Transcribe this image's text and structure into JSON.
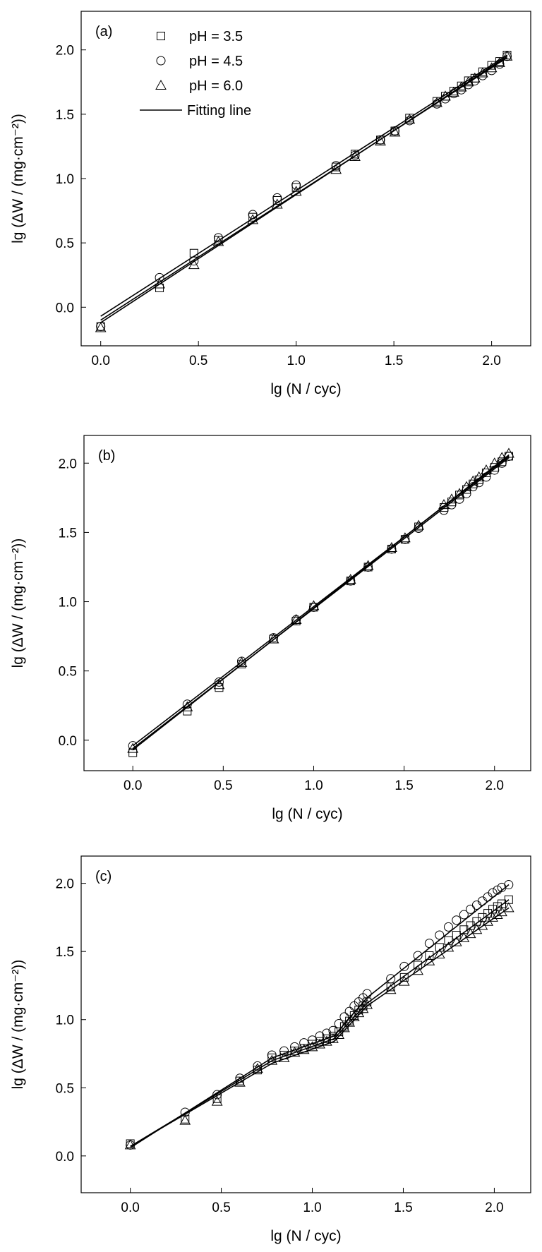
{
  "chart_data": [
    {
      "type": "scatter",
      "panel_label": "(a)",
      "xlabel": "lg (N / cyc)",
      "ylabel": "lg (ΔW / (mg·cm⁻²))",
      "xlim": [
        -0.1,
        2.2
      ],
      "ylim": [
        -0.3,
        2.3
      ],
      "xticks": [
        "0.0",
        "0.5",
        "1.0",
        "1.5",
        "2.0"
      ],
      "yticks": [
        "0.0",
        "0.5",
        "1.0",
        "1.5",
        "2.0"
      ],
      "legend": {
        "placement": "top-left",
        "entries": [
          {
            "label": "pH = 3.5",
            "marker": "square"
          },
          {
            "label": "pH = 4.5",
            "marker": "circle"
          },
          {
            "label": "pH = 6.0",
            "marker": "triangle"
          },
          {
            "label": "Fitting line",
            "marker": "line"
          }
        ]
      },
      "series": [
        {
          "name": "pH = 3.5",
          "marker": "square",
          "x": [
            0,
            0.301,
            0.477,
            0.602,
            0.778,
            0.903,
            1.0,
            1.204,
            1.301,
            1.431,
            1.505,
            1.58,
            1.72,
            1.763,
            1.806,
            1.845,
            1.881,
            1.914,
            1.954,
            2.0,
            2.041,
            2.079
          ],
          "y": [
            -0.15,
            0.15,
            0.42,
            0.52,
            0.7,
            0.83,
            0.93,
            1.09,
            1.19,
            1.3,
            1.37,
            1.47,
            1.6,
            1.64,
            1.68,
            1.72,
            1.76,
            1.78,
            1.83,
            1.88,
            1.91,
            1.96
          ]
        },
        {
          "name": "pH = 4.5",
          "marker": "circle",
          "x": [
            0,
            0.301,
            0.477,
            0.602,
            0.778,
            0.903,
            1.0,
            1.204,
            1.301,
            1.431,
            1.505,
            1.58,
            1.72,
            1.763,
            1.806,
            1.845,
            1.881,
            1.914,
            1.954,
            2.0,
            2.041,
            2.079
          ],
          "y": [
            -0.15,
            0.23,
            0.36,
            0.54,
            0.72,
            0.85,
            0.95,
            1.1,
            1.18,
            1.3,
            1.37,
            1.45,
            1.58,
            1.62,
            1.66,
            1.69,
            1.73,
            1.76,
            1.8,
            1.84,
            1.89,
            1.95
          ]
        },
        {
          "name": "pH = 6.0",
          "marker": "triangle",
          "x": [
            0,
            0.301,
            0.477,
            0.602,
            0.778,
            0.903,
            1.0,
            1.204,
            1.301,
            1.431,
            1.505,
            1.58,
            1.72,
            1.763,
            1.806,
            1.845,
            1.881,
            1.914,
            1.954,
            2.0,
            2.041,
            2.079
          ],
          "y": [
            -0.16,
            0.18,
            0.33,
            0.51,
            0.68,
            0.8,
            0.9,
            1.07,
            1.17,
            1.29,
            1.36,
            1.46,
            1.59,
            1.64,
            1.67,
            1.71,
            1.75,
            1.78,
            1.82,
            1.86,
            1.9,
            1.95
          ]
        }
      ],
      "fit_lines": [
        {
          "x": [
            0,
            2.08
          ],
          "y": [
            -0.07,
            1.96
          ]
        },
        {
          "x": [
            0,
            2.08
          ],
          "y": [
            -0.1,
            1.94
          ]
        },
        {
          "x": [
            0,
            2.08
          ],
          "y": [
            -0.12,
            1.95
          ]
        }
      ]
    },
    {
      "type": "scatter",
      "panel_label": "(b)",
      "xlabel": "lg (N / cyc)",
      "ylabel": "lg (ΔW / (mg·cm⁻²))",
      "xlim": [
        -0.27,
        2.2
      ],
      "ylim": [
        -0.22,
        2.2
      ],
      "xticks": [
        "0.0",
        "0.5",
        "1.0",
        "1.5",
        "2.0"
      ],
      "yticks": [
        "0.0",
        "0.5",
        "1.0",
        "1.5",
        "2.0"
      ],
      "series": [
        {
          "name": "pH = 3.5",
          "marker": "square",
          "x": [
            0,
            0.301,
            0.477,
            0.602,
            0.778,
            0.903,
            1.0,
            1.204,
            1.301,
            1.431,
            1.505,
            1.58,
            1.72,
            1.763,
            1.806,
            1.845,
            1.881,
            1.914,
            1.954,
            2.0,
            2.041,
            2.079
          ],
          "y": [
            -0.09,
            0.21,
            0.38,
            0.55,
            0.73,
            0.86,
            0.96,
            1.15,
            1.25,
            1.38,
            1.45,
            1.54,
            1.68,
            1.72,
            1.77,
            1.81,
            1.85,
            1.88,
            1.93,
            1.97,
            2.01,
            2.05
          ]
        },
        {
          "name": "pH = 4.5",
          "marker": "circle",
          "x": [
            0,
            0.301,
            0.477,
            0.602,
            0.778,
            0.903,
            1.0,
            1.204,
            1.301,
            1.431,
            1.505,
            1.58,
            1.72,
            1.763,
            1.806,
            1.845,
            1.881,
            1.914,
            1.954,
            2.0,
            2.041,
            2.079
          ],
          "y": [
            -0.04,
            0.26,
            0.42,
            0.57,
            0.74,
            0.87,
            0.96,
            1.15,
            1.25,
            1.38,
            1.45,
            1.53,
            1.66,
            1.7,
            1.74,
            1.78,
            1.83,
            1.86,
            1.9,
            1.95,
            2.0,
            2.05
          ]
        },
        {
          "name": "pH = 6.0",
          "marker": "triangle",
          "x": [
            0,
            0.301,
            0.477,
            0.602,
            0.778,
            0.903,
            1.0,
            1.204,
            1.301,
            1.431,
            1.505,
            1.58,
            1.72,
            1.763,
            1.806,
            1.845,
            1.881,
            1.914,
            1.954,
            2.0,
            2.041,
            2.079
          ],
          "y": [
            -0.06,
            0.24,
            0.4,
            0.56,
            0.73,
            0.87,
            0.97,
            1.16,
            1.26,
            1.39,
            1.46,
            1.55,
            1.7,
            1.74,
            1.78,
            1.83,
            1.87,
            1.9,
            1.95,
            2.0,
            2.04,
            2.07
          ]
        }
      ],
      "fit_lines": [
        {
          "x": [
            0,
            2.08
          ],
          "y": [
            -0.04,
            2.05
          ]
        },
        {
          "x": [
            0,
            2.08
          ],
          "y": [
            -0.07,
            2.06
          ]
        },
        {
          "x": [
            0,
            2.08
          ],
          "y": [
            -0.06,
            2.04
          ]
        }
      ]
    },
    {
      "type": "scatter",
      "panel_label": "(c)",
      "xlabel": "lg (N / cyc)",
      "ylabel": "lg (ΔW / (mg·cm⁻²))",
      "xlim": [
        -0.27,
        2.2
      ],
      "ylim": [
        -0.27,
        2.2
      ],
      "xticks": [
        "0.0",
        "0.5",
        "1.0",
        "1.5",
        "2.0"
      ],
      "yticks": [
        "0.0",
        "0.5",
        "1.0",
        "1.5",
        "2.0"
      ],
      "series": [
        {
          "name": "pH = 3.5",
          "marker": "square",
          "x": [
            0,
            0.301,
            0.477,
            0.602,
            0.699,
            0.778,
            0.845,
            0.903,
            0.954,
            1.0,
            1.041,
            1.079,
            1.114,
            1.146,
            1.176,
            1.204,
            1.23,
            1.255,
            1.279,
            1.301,
            1.431,
            1.505,
            1.58,
            1.643,
            1.699,
            1.748,
            1.792,
            1.833,
            1.869,
            1.903,
            1.934,
            1.964,
            1.991,
            2.017,
            2.041,
            2.079
          ],
          "y": [
            0.09,
            0.27,
            0.42,
            0.55,
            0.63,
            0.72,
            0.74,
            0.77,
            0.79,
            0.82,
            0.84,
            0.86,
            0.88,
            0.91,
            0.95,
            0.99,
            1.03,
            1.07,
            1.1,
            1.13,
            1.24,
            1.31,
            1.4,
            1.47,
            1.53,
            1.58,
            1.62,
            1.66,
            1.69,
            1.72,
            1.75,
            1.78,
            1.81,
            1.83,
            1.85,
            1.88
          ]
        },
        {
          "name": "pH = 4.5",
          "marker": "circle",
          "x": [
            0,
            0.301,
            0.477,
            0.602,
            0.699,
            0.778,
            0.845,
            0.903,
            0.954,
            1.0,
            1.041,
            1.079,
            1.114,
            1.146,
            1.176,
            1.204,
            1.23,
            1.255,
            1.279,
            1.301,
            1.431,
            1.505,
            1.58,
            1.643,
            1.699,
            1.748,
            1.792,
            1.833,
            1.869,
            1.903,
            1.934,
            1.964,
            1.991,
            2.017,
            2.041,
            2.079
          ],
          "y": [
            0.08,
            0.32,
            0.45,
            0.57,
            0.66,
            0.74,
            0.77,
            0.8,
            0.83,
            0.85,
            0.88,
            0.9,
            0.92,
            0.97,
            1.02,
            1.06,
            1.1,
            1.13,
            1.16,
            1.19,
            1.3,
            1.39,
            1.47,
            1.56,
            1.62,
            1.68,
            1.73,
            1.77,
            1.81,
            1.84,
            1.87,
            1.9,
            1.93,
            1.95,
            1.97,
            1.99
          ]
        },
        {
          "name": "pH = 6.0",
          "marker": "triangle",
          "x": [
            0,
            0.301,
            0.477,
            0.602,
            0.699,
            0.778,
            0.845,
            0.903,
            0.954,
            1.0,
            1.041,
            1.079,
            1.114,
            1.146,
            1.176,
            1.204,
            1.23,
            1.255,
            1.279,
            1.301,
            1.431,
            1.505,
            1.58,
            1.643,
            1.699,
            1.748,
            1.792,
            1.833,
            1.869,
            1.903,
            1.934,
            1.964,
            1.991,
            2.017,
            2.041,
            2.079
          ],
          "y": [
            0.08,
            0.26,
            0.4,
            0.54,
            0.64,
            0.7,
            0.72,
            0.76,
            0.78,
            0.8,
            0.82,
            0.84,
            0.86,
            0.89,
            0.94,
            0.98,
            1.02,
            1.05,
            1.08,
            1.11,
            1.22,
            1.28,
            1.36,
            1.43,
            1.48,
            1.53,
            1.57,
            1.6,
            1.63,
            1.66,
            1.69,
            1.72,
            1.75,
            1.77,
            1.79,
            1.82
          ]
        }
      ],
      "fit_lines": [
        {
          "x": [
            0,
            0.78,
            1.12,
            1.3,
            2.08
          ],
          "y": [
            0.06,
            0.72,
            0.88,
            1.16,
            1.99
          ]
        },
        {
          "x": [
            0,
            0.78,
            1.12,
            1.3,
            2.08
          ],
          "y": [
            0.07,
            0.7,
            0.86,
            1.12,
            1.88
          ]
        },
        {
          "x": [
            0,
            0.78,
            1.12,
            1.3,
            2.08
          ],
          "y": [
            0.07,
            0.68,
            0.84,
            1.1,
            1.82
          ]
        }
      ]
    }
  ]
}
